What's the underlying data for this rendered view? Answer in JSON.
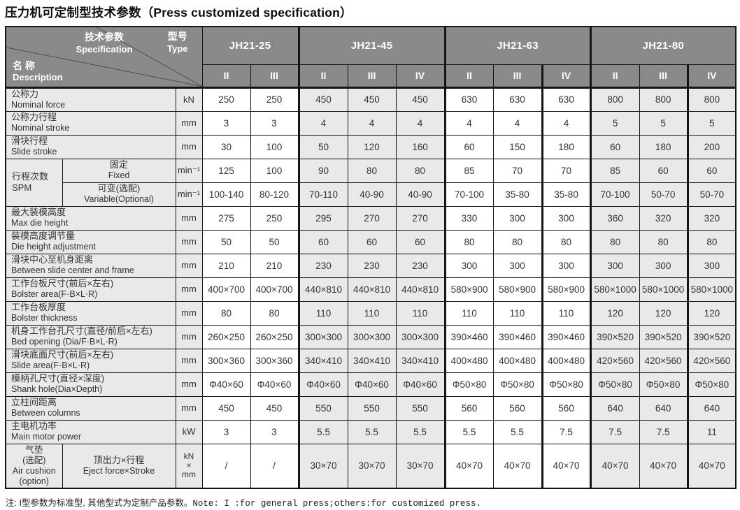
{
  "title": "压力机可定制型技术参数（Press customized specification）",
  "table": {
    "corner": {
      "spec_zh": "技术参数",
      "spec_en": "Specification",
      "type_zh": "型号",
      "type_en": "Type",
      "desc_zh": "名 称",
      "desc_en": "Description"
    },
    "models": [
      {
        "name": "JH21-25",
        "variants": [
          "II",
          "III"
        ]
      },
      {
        "name": "JH21-45",
        "variants": [
          "II",
          "III",
          "IV"
        ]
      },
      {
        "name": "JH21-63",
        "variants": [
          "II",
          "III",
          "IV"
        ]
      },
      {
        "name": "JH21-80",
        "variants": [
          "II",
          "III",
          "IV"
        ]
      }
    ],
    "rows": [
      {
        "label": {
          "zh": "公称力",
          "en": "Nominal force"
        },
        "unit": "kN",
        "values": [
          "250",
          "250",
          "450",
          "450",
          "450",
          "630",
          "630",
          "630",
          "800",
          "800",
          "800"
        ]
      },
      {
        "label": {
          "zh": "公称力行程",
          "en": "Nominal stroke"
        },
        "unit": "mm",
        "values": [
          "3",
          "3",
          "4",
          "4",
          "4",
          "4",
          "4",
          "4",
          "5",
          "5",
          "5"
        ]
      },
      {
        "label": {
          "zh": "滑块行程",
          "en": "Slide stroke"
        },
        "unit": "mm",
        "values": [
          "30",
          "100",
          "50",
          "120",
          "160",
          "60",
          "150",
          "180",
          "60",
          "180",
          "200"
        ]
      },
      {
        "group": {
          "text": "行程次数\nSPM",
          "rowspan": 2
        },
        "sub": {
          "zh": "固定",
          "en": "Fixed"
        },
        "unit": "min⁻¹",
        "values": [
          "125",
          "100",
          "90",
          "80",
          "80",
          "85",
          "70",
          "70",
          "85",
          "60",
          "60"
        ]
      },
      {
        "sub": {
          "zh": "可变(选配)",
          "en": "Variable(Optional)"
        },
        "unit": "min⁻¹",
        "values": [
          "100-140",
          "80-120",
          "70-110",
          "40-90",
          "40-90",
          "70-100",
          "35-80",
          "35-80",
          "70-100",
          "50-70",
          "50-70"
        ]
      },
      {
        "label": {
          "zh": "最大装模高度",
          "en": "Max die height"
        },
        "unit": "mm",
        "values": [
          "275",
          "250",
          "295",
          "270",
          "270",
          "330",
          "300",
          "300",
          "360",
          "320",
          "320"
        ]
      },
      {
        "label": {
          "zh": "装模高度调节量",
          "en": "Die height adjustment"
        },
        "unit": "mm",
        "values": [
          "50",
          "50",
          "60",
          "60",
          "60",
          "80",
          "80",
          "80",
          "80",
          "80",
          "80"
        ]
      },
      {
        "label": {
          "zh": "滑块中心至机身距离",
          "en": "Between slide center and frame"
        },
        "unit": "mm",
        "values": [
          "210",
          "210",
          "230",
          "230",
          "230",
          "300",
          "300",
          "300",
          "300",
          "300",
          "300"
        ]
      },
      {
        "label": {
          "zh": "工作台板尺寸(前后×左右)",
          "en": "Bolster area(F·B×L·R)"
        },
        "unit": "mm",
        "values": [
          "400×700",
          "400×700",
          "440×810",
          "440×810",
          "440×810",
          "580×900",
          "580×900",
          "580×900",
          "580×1000",
          "580×1000",
          "580×1000"
        ]
      },
      {
        "label": {
          "zh": "工作台板厚度",
          "en": "Bolster thickness"
        },
        "unit": "mm",
        "values": [
          "80",
          "80",
          "110",
          "110",
          "110",
          "110",
          "110",
          "110",
          "120",
          "120",
          "120"
        ]
      },
      {
        "label": {
          "zh": "机身工作台孔尺寸(直径/前后×左右)",
          "en": "Bed opening (Dia/F·B×L·R)"
        },
        "unit": "mm",
        "values": [
          "260×250",
          "260×250",
          "300×300",
          "300×300",
          "300×300",
          "390×460",
          "390×460",
          "390×460",
          "390×520",
          "390×520",
          "390×520"
        ]
      },
      {
        "label": {
          "zh": "滑块底面尺寸(前后×左右)",
          "en": "Slide area(F·B×L·R)"
        },
        "unit": "mm",
        "values": [
          "300×360",
          "300×360",
          "340×410",
          "340×410",
          "340×410",
          "400×480",
          "400×480",
          "400×480",
          "420×560",
          "420×560",
          "420×560"
        ]
      },
      {
        "label": {
          "zh": "模柄孔尺寸(直径×深度)",
          "en": "Shank hole(Dia×Depth)"
        },
        "unit": "mm",
        "values": [
          "Φ40×60",
          "Φ40×60",
          "Φ40×60",
          "Φ40×60",
          "Φ40×60",
          "Φ50×80",
          "Φ50×80",
          "Φ50×80",
          "Φ50×80",
          "Φ50×80",
          "Φ50×80"
        ]
      },
      {
        "label": {
          "zh": "立柱间距离",
          "en": "Between columns"
        },
        "unit": "mm",
        "values": [
          "450",
          "450",
          "550",
          "550",
          "550",
          "560",
          "560",
          "560",
          "640",
          "640",
          "640"
        ]
      },
      {
        "label": {
          "zh": "主电机功率",
          "en": "Main motor power"
        },
        "unit": "kW",
        "values": [
          "3",
          "3",
          "5.5",
          "5.5",
          "5.5",
          "5.5",
          "5.5",
          "7.5",
          "7.5",
          "7.5",
          "11"
        ]
      },
      {
        "tall": true,
        "group": {
          "text": "气垫\n(选配)\nAir cushion\n(option)",
          "rowspan": 1
        },
        "sub": {
          "zh": "顶出力×行程",
          "en": "Eject force×Stroke"
        },
        "unit": "kN\n×\nmm",
        "values": [
          "/",
          "/",
          "30×70",
          "30×70",
          "30×70",
          "40×70",
          "40×70",
          "40×70",
          "40×70",
          "40×70",
          "40×70"
        ]
      }
    ]
  },
  "note": {
    "zh": "注: I型参数为标准型, 其他型式为定制产品参数。",
    "en": "Note: I :for general press;others:for customized press."
  },
  "colors": {
    "header_bg": "#8a8a8a",
    "shaded_cell": "#e9e9e9",
    "border": "#141414"
  }
}
